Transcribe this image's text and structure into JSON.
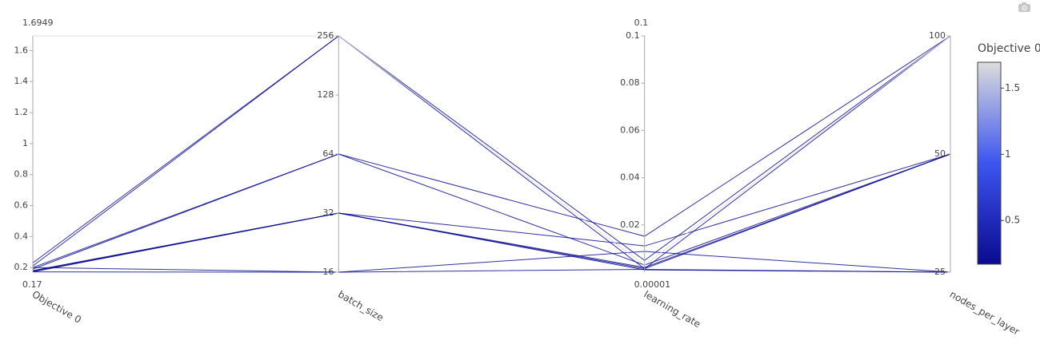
{
  "chart_data": {
    "type": "parcoords",
    "colorscale": [
      "#0a0a8f",
      "#3d55f0",
      "#dcdcdc"
    ],
    "colorbar": {
      "title": "Objective 0",
      "ticks": [
        0.5,
        1,
        1.5
      ]
    },
    "dimensions": [
      {
        "label": "Objective 0",
        "range": [
          0.17,
          1.6949
        ],
        "log": false,
        "show_range": true,
        "ticks": [
          0.2,
          0.4,
          0.6,
          0.8,
          1,
          1.2,
          1.4,
          1.6
        ],
        "values": [
          0.23,
          0.21,
          0.2,
          0.19,
          0.18,
          0.175,
          0.172,
          0.2,
          0.172,
          0.18,
          1.6949
        ]
      },
      {
        "label": "batch_size",
        "range": [
          16,
          256
        ],
        "log": true,
        "show_range": false,
        "ticks": [
          16,
          32,
          64,
          128,
          256
        ],
        "values": [
          256,
          256,
          64,
          64,
          32,
          32,
          32,
          16,
          16,
          32,
          256
        ]
      },
      {
        "label": "learning_rate",
        "range": [
          1e-05,
          0.1
        ],
        "log": false,
        "show_range": true,
        "ticks": [
          0.02,
          0.04,
          0.06,
          0.08,
          0.1
        ],
        "values": [
          0.005,
          0.0015,
          0.0152,
          0.003,
          0.0111,
          0.002,
          0.001,
          0.0088,
          0.0012,
          0.0015,
          0.003
        ]
      },
      {
        "label": "nodes_per_layer",
        "range": [
          25,
          100
        ],
        "log": true,
        "show_range": false,
        "ticks": [
          25,
          50,
          100
        ],
        "values": [
          100,
          100,
          100,
          50,
          50,
          50,
          25,
          25,
          25,
          50,
          100
        ]
      }
    ]
  }
}
